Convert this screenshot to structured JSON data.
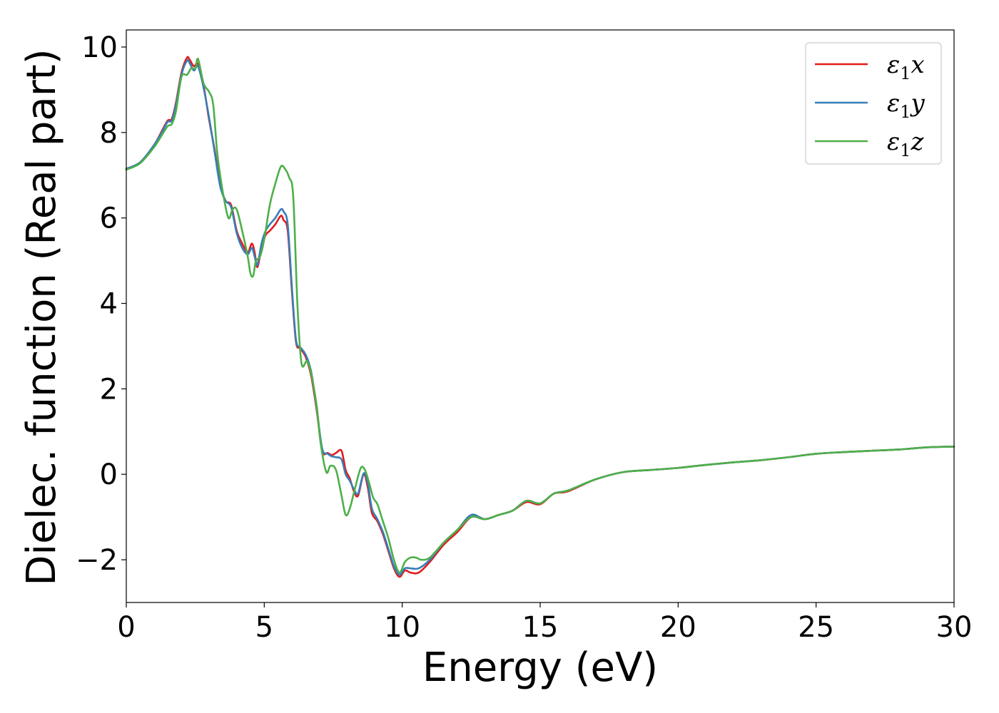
{
  "chart_data": {
    "type": "line",
    "title": "",
    "xlabel": "Energy (eV)",
    "ylabel": "Dielec. function (Real part)",
    "xlim": [
      0,
      30
    ],
    "ylim": [
      -3,
      10.4
    ],
    "xticks": [
      0,
      5,
      10,
      15,
      20,
      25,
      30
    ],
    "yticks": [
      -2,
      0,
      2,
      4,
      6,
      8,
      10
    ],
    "xtick_labels": [
      "0",
      "5",
      "10",
      "15",
      "20",
      "25",
      "30"
    ],
    "ytick_labels": [
      "−2",
      "0",
      "2",
      "4",
      "6",
      "8",
      "10"
    ],
    "grid": false,
    "legend_position": "top-right",
    "series": [
      {
        "name": "ε1x",
        "name_base": "ε",
        "name_sub": "1",
        "name_suffix": "x",
        "color": "#e41a1c",
        "x": [
          0,
          0.5,
          1.0,
          1.3,
          1.5,
          1.65,
          1.8,
          2.0,
          2.2,
          2.3,
          2.45,
          2.6,
          2.8,
          3.0,
          3.2,
          3.4,
          3.6,
          3.8,
          4.0,
          4.2,
          4.4,
          4.55,
          4.65,
          4.75,
          4.9,
          5.05,
          5.2,
          5.4,
          5.6,
          5.7,
          5.85,
          6.0,
          6.15,
          6.3,
          6.5,
          6.7,
          6.9,
          7.1,
          7.3,
          7.45,
          7.6,
          7.8,
          7.95,
          8.1,
          8.25,
          8.4,
          8.6,
          8.75,
          8.9,
          9.1,
          9.3,
          9.5,
          9.7,
          9.9,
          10.1,
          10.3,
          10.6,
          11.0,
          11.5,
          12.0,
          12.5,
          13.0,
          13.5,
          14.0,
          14.5,
          15.0,
          15.5,
          16.0,
          17.0,
          18.0,
          19.0,
          20.0,
          21.0,
          22.0,
          23.0,
          24.0,
          25.0,
          26.0,
          27.0,
          28.0,
          29.0,
          30.0
        ],
        "y": [
          7.15,
          7.3,
          7.7,
          8.05,
          8.28,
          8.32,
          8.7,
          9.4,
          9.75,
          9.7,
          9.55,
          9.6,
          9.1,
          8.3,
          7.6,
          6.8,
          6.4,
          6.3,
          5.7,
          5.4,
          5.2,
          5.4,
          5.2,
          4.85,
          5.3,
          5.6,
          5.7,
          5.85,
          6.05,
          5.95,
          5.7,
          4.3,
          3.1,
          2.95,
          2.75,
          2.3,
          1.5,
          0.55,
          0.5,
          0.45,
          0.5,
          0.55,
          0.1,
          -0.1,
          -0.4,
          -0.5,
          0.0,
          -0.3,
          -0.9,
          -1.1,
          -1.4,
          -1.8,
          -2.2,
          -2.4,
          -2.25,
          -2.3,
          -2.3,
          -2.05,
          -1.65,
          -1.35,
          -1.0,
          -1.05,
          -0.95,
          -0.85,
          -0.65,
          -0.7,
          -0.45,
          -0.4,
          -0.12,
          0.05,
          0.1,
          0.15,
          0.22,
          0.28,
          0.33,
          0.4,
          0.48,
          0.52,
          0.55,
          0.58,
          0.63,
          0.65
        ]
      },
      {
        "name": "ε1y",
        "name_base": "ε",
        "name_sub": "1",
        "name_suffix": "y",
        "color": "#377eb8",
        "x": [
          0,
          0.5,
          1.0,
          1.3,
          1.5,
          1.65,
          1.8,
          2.0,
          2.2,
          2.3,
          2.45,
          2.6,
          2.8,
          3.0,
          3.2,
          3.4,
          3.6,
          3.8,
          4.0,
          4.2,
          4.4,
          4.55,
          4.65,
          4.75,
          4.9,
          5.05,
          5.2,
          5.4,
          5.6,
          5.7,
          5.85,
          6.0,
          6.15,
          6.3,
          6.5,
          6.7,
          6.9,
          7.1,
          7.3,
          7.45,
          7.6,
          7.8,
          7.95,
          8.1,
          8.25,
          8.4,
          8.6,
          8.75,
          8.9,
          9.1,
          9.3,
          9.5,
          9.7,
          9.9,
          10.1,
          10.3,
          10.6,
          11.0,
          11.5,
          12.0,
          12.5,
          13.0,
          13.5,
          14.0,
          14.5,
          15.0,
          15.5,
          16.0,
          17.0,
          18.0,
          19.0,
          20.0,
          21.0,
          22.0,
          23.0,
          24.0,
          25.0,
          26.0,
          27.0,
          28.0,
          29.0,
          30.0
        ],
        "y": [
          7.15,
          7.3,
          7.7,
          8.02,
          8.25,
          8.28,
          8.65,
          9.35,
          9.68,
          9.62,
          9.45,
          9.55,
          9.05,
          8.35,
          7.55,
          6.75,
          6.4,
          6.25,
          5.65,
          5.3,
          5.15,
          5.3,
          5.1,
          4.9,
          5.4,
          5.7,
          5.85,
          6.0,
          6.2,
          6.15,
          5.85,
          4.4,
          3.15,
          2.98,
          2.8,
          2.4,
          1.55,
          0.6,
          0.48,
          0.42,
          0.4,
          0.35,
          0.0,
          -0.15,
          -0.35,
          -0.45,
          0.02,
          -0.2,
          -0.8,
          -1.05,
          -1.35,
          -1.75,
          -2.15,
          -2.35,
          -2.2,
          -2.2,
          -2.2,
          -2.0,
          -1.6,
          -1.3,
          -0.95,
          -1.05,
          -0.95,
          -0.85,
          -0.62,
          -0.68,
          -0.45,
          -0.38,
          -0.12,
          0.05,
          0.1,
          0.15,
          0.22,
          0.28,
          0.33,
          0.4,
          0.48,
          0.52,
          0.55,
          0.58,
          0.63,
          0.65
        ]
      },
      {
        "name": "ε1z",
        "name_base": "ε",
        "name_sub": "1",
        "name_suffix": "z",
        "color": "#4daf4a",
        "x": [
          0,
          0.5,
          1.0,
          1.3,
          1.5,
          1.65,
          1.8,
          2.0,
          2.2,
          2.35,
          2.5,
          2.6,
          2.8,
          3.0,
          3.15,
          3.3,
          3.5,
          3.7,
          3.85,
          4.0,
          4.2,
          4.4,
          4.5,
          4.6,
          4.7,
          4.85,
          5.0,
          5.2,
          5.4,
          5.6,
          5.75,
          5.9,
          6.05,
          6.2,
          6.35,
          6.55,
          6.7,
          6.9,
          7.05,
          7.25,
          7.4,
          7.6,
          7.8,
          7.95,
          8.1,
          8.3,
          8.5,
          8.65,
          8.8,
          8.95,
          9.1,
          9.3,
          9.5,
          9.7,
          9.9,
          10.1,
          10.3,
          10.5,
          10.7,
          11.0,
          11.5,
          12.0,
          12.5,
          13.0,
          13.5,
          14.0,
          14.5,
          15.0,
          15.5,
          16.0,
          17.0,
          18.0,
          19.0,
          20.0,
          21.0,
          22.0,
          23.0,
          24.0,
          25.0,
          26.0,
          27.0,
          28.0,
          29.0,
          30.0
        ],
        "y": [
          7.13,
          7.28,
          7.65,
          7.95,
          8.15,
          8.2,
          8.5,
          9.3,
          9.35,
          9.5,
          9.5,
          9.72,
          9.15,
          8.95,
          8.65,
          7.5,
          6.6,
          6.0,
          6.2,
          6.2,
          5.7,
          5.1,
          4.7,
          4.65,
          5.0,
          5.1,
          5.5,
          6.3,
          6.8,
          7.2,
          7.15,
          6.95,
          6.5,
          4.0,
          2.6,
          2.65,
          2.35,
          1.6,
          0.7,
          0.05,
          0.2,
          0.1,
          -0.5,
          -0.95,
          -0.8,
          -0.3,
          0.15,
          0.1,
          -0.2,
          -0.55,
          -0.7,
          -1.1,
          -1.5,
          -2.0,
          -2.3,
          -2.05,
          -1.95,
          -1.95,
          -2.0,
          -1.95,
          -1.6,
          -1.3,
          -1.0,
          -1.05,
          -0.95,
          -0.85,
          -0.62,
          -0.68,
          -0.45,
          -0.38,
          -0.12,
          0.05,
          0.1,
          0.15,
          0.22,
          0.28,
          0.33,
          0.4,
          0.48,
          0.52,
          0.55,
          0.58,
          0.63,
          0.65
        ]
      }
    ]
  }
}
